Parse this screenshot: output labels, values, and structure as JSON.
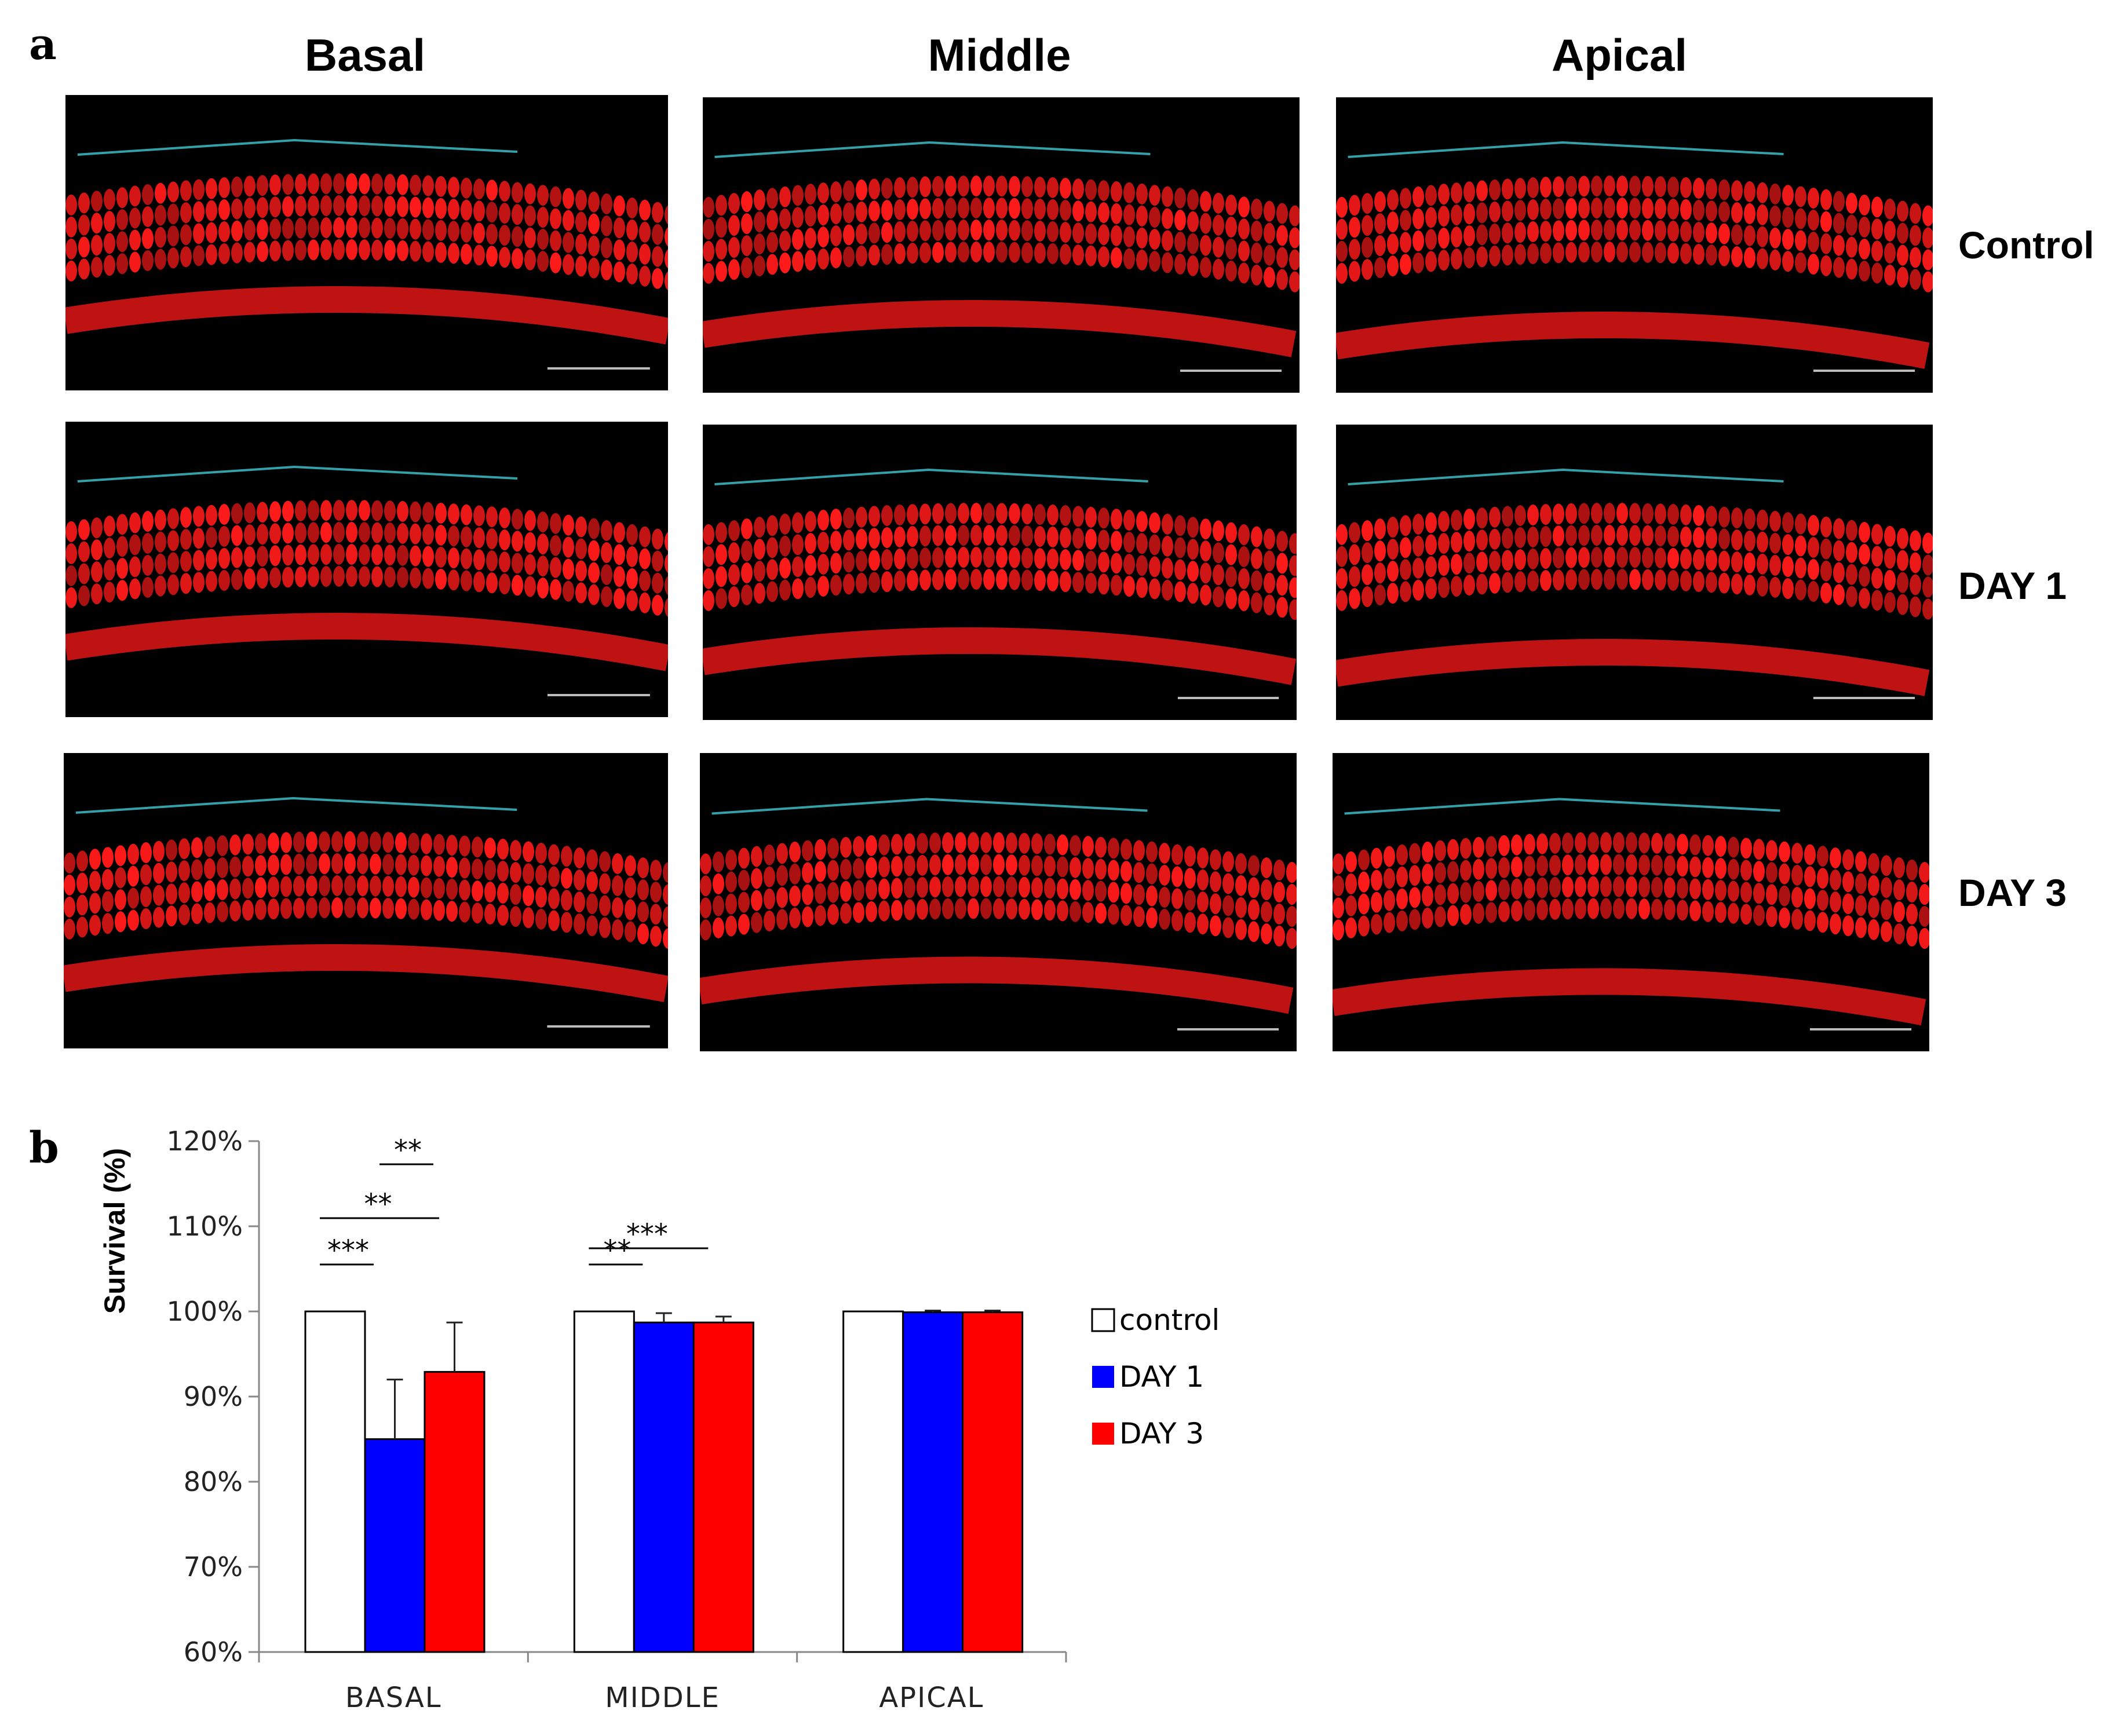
{
  "panel_a": {
    "label": "a",
    "columns": [
      "Basal",
      "Middle",
      "Apical"
    ],
    "rows": [
      "Control",
      "DAY 1",
      "DAY 3"
    ]
  },
  "panel_b": {
    "label": "b"
  },
  "colors": {
    "control": "#ffffff",
    "day1": "#0000ff",
    "day3": "#ff0000",
    "stain": "#ff1a1a",
    "trace": "#35a0a8"
  },
  "chart_data": {
    "type": "bar",
    "ylabel": "Survival (%)",
    "categories": [
      "BASAL",
      "MIDDLE",
      "APICAL"
    ],
    "ylim": [
      60,
      120
    ],
    "yticks": [
      60,
      70,
      80,
      90,
      100,
      110,
      120
    ],
    "ytick_labels": [
      "60%",
      "70%",
      "80%",
      "90%",
      "100%",
      "110%",
      "120%"
    ],
    "series": [
      {
        "name": "control",
        "values": [
          100,
          100,
          100
        ],
        "errors": [
          0,
          0,
          0
        ]
      },
      {
        "name": "DAY 1",
        "values": [
          85,
          98.7,
          99.9
        ],
        "errors": [
          7,
          1.1,
          0.2
        ]
      },
      {
        "name": "DAY 3",
        "values": [
          92.9,
          98.7,
          99.9
        ],
        "errors": [
          5.8,
          0.7,
          0.2
        ]
      }
    ],
    "significance": [
      {
        "category": 0,
        "from": 0,
        "to": 1,
        "label": "***"
      },
      {
        "category": 0,
        "from": 0,
        "to": 2,
        "label": "**"
      },
      {
        "category": 0,
        "from": 1,
        "to": 2,
        "label": "**"
      },
      {
        "category": 1,
        "from": 0,
        "to": 1,
        "label": "**"
      },
      {
        "category": 1,
        "from": 0,
        "to": 2,
        "label": "***"
      }
    ],
    "legend_position": "right",
    "grid": false
  }
}
